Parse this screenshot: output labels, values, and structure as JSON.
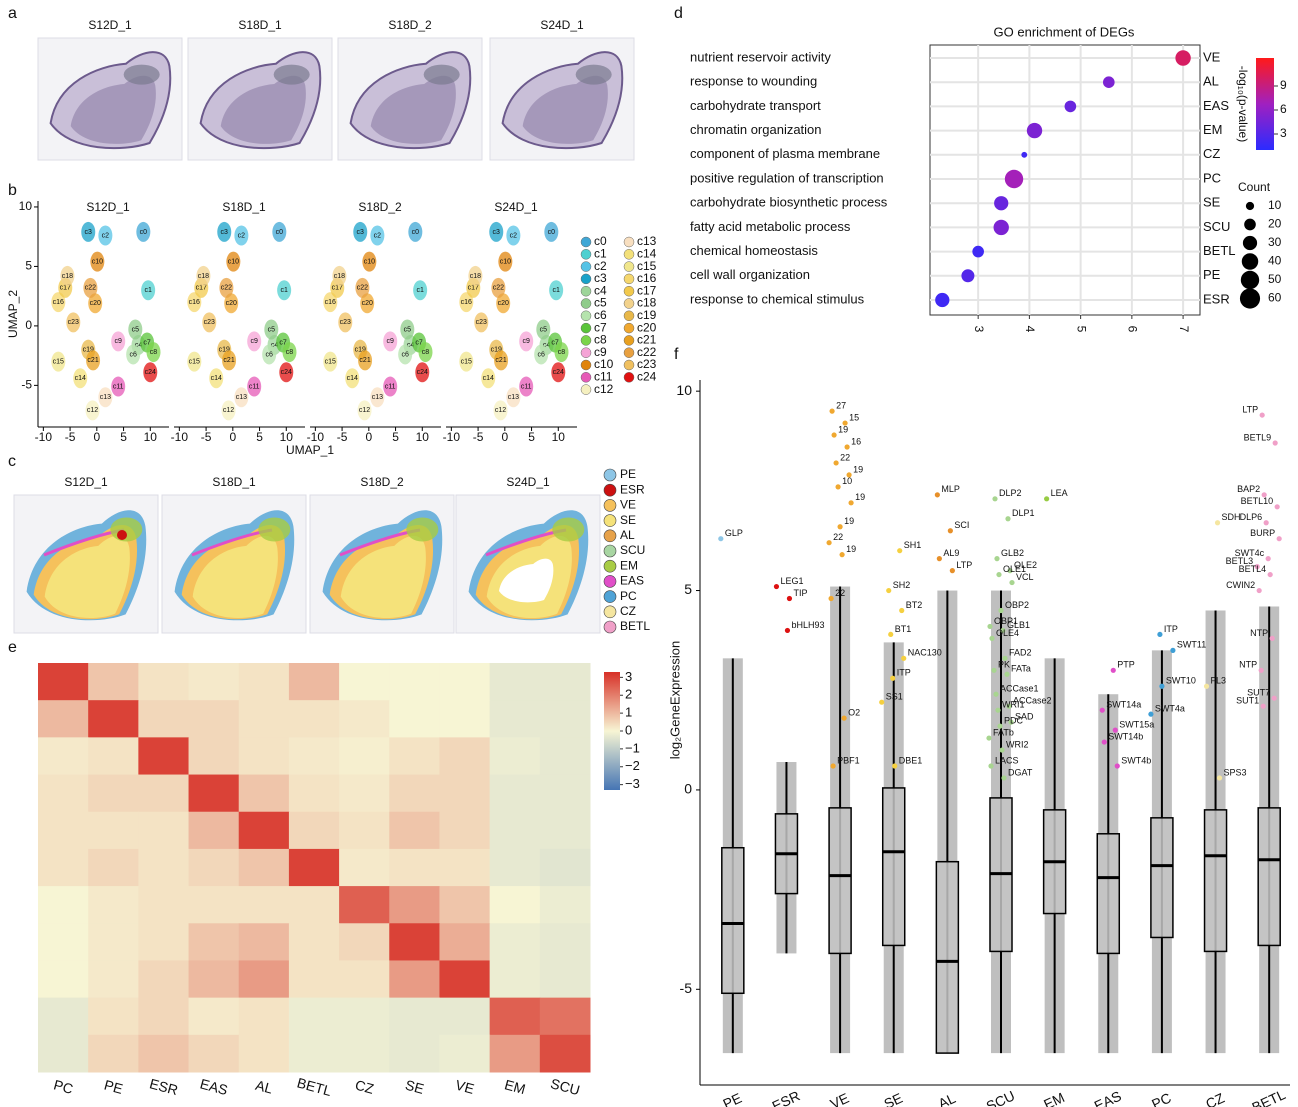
{
  "panel_labels": [
    "a",
    "b",
    "c",
    "d",
    "e",
    "f"
  ],
  "chart_data": [
    {
      "type": "image",
      "titles": [
        "S12D_1",
        "S18D_1",
        "S18D_2",
        "S24D_1"
      ]
    },
    {
      "type": "umap",
      "titles": [
        "S12D_1",
        "S18D_1",
        "S18D_2",
        "S24D_1"
      ],
      "x_label": "UMAP_1",
      "y_label": "UMAP_2",
      "xlim": [
        -11,
        13.5
      ],
      "ylim": [
        -8.5,
        10.5
      ],
      "xticks": [
        -10,
        -5,
        0,
        5,
        10
      ],
      "yticks": [
        -5,
        0,
        5,
        10
      ],
      "series": [
        {
          "name": "c0",
          "color": "#3fa7d6",
          "x": 8.7,
          "y": 7.9
        },
        {
          "name": "c1",
          "color": "#4fd0d0",
          "x": 9.6,
          "y": 3.0
        },
        {
          "name": "c2",
          "color": "#56c3e6",
          "x": 1.6,
          "y": 7.6
        },
        {
          "name": "c3",
          "color": "#1aa2c9",
          "x": -1.6,
          "y": 7.9
        },
        {
          "name": "c4",
          "color": "#9ed59a",
          "x": 7.8,
          "y": -1.6
        },
        {
          "name": "c5",
          "color": "#8fcc8a",
          "x": 7.2,
          "y": -0.3
        },
        {
          "name": "c6",
          "color": "#b5e3ad",
          "x": 6.8,
          "y": -2.4
        },
        {
          "name": "c7",
          "color": "#5ac43a",
          "x": 9.4,
          "y": -1.4
        },
        {
          "name": "c8",
          "color": "#7bd44a",
          "x": 10.6,
          "y": -2.2
        },
        {
          "name": "c9",
          "color": "#f5a3d6",
          "x": 4,
          "y": -1.3
        },
        {
          "name": "c10",
          "color": "#e0840c",
          "x": 0.1,
          "y": 5.4
        },
        {
          "name": "c11",
          "color": "#e65ab7",
          "x": 4,
          "y": -5.1
        },
        {
          "name": "c12",
          "color": "#f5f0c0",
          "x": -0.8,
          "y": -7.1
        },
        {
          "name": "c13",
          "color": "#f8dfc0",
          "x": 1.6,
          "y": -6
        },
        {
          "name": "c14",
          "color": "#f3e07a",
          "x": -3.1,
          "y": -4.4
        },
        {
          "name": "c15",
          "color": "#f0e68c",
          "x": -7.2,
          "y": -3
        },
        {
          "name": "c16",
          "color": "#f5d76e",
          "x": -7.2,
          "y": 2
        },
        {
          "name": "c17",
          "color": "#f2c94c",
          "x": -5.9,
          "y": 3.2
        },
        {
          "name": "c18",
          "color": "#f2d28c",
          "x": -5.5,
          "y": 4.2
        },
        {
          "name": "c19",
          "color": "#e8b84a",
          "x": -1.6,
          "y": -2
        },
        {
          "name": "c20",
          "color": "#f0a830",
          "x": -0.3,
          "y": 1.9
        },
        {
          "name": "c21",
          "color": "#e8a020",
          "x": -0.7,
          "y": -2.9
        },
        {
          "name": "c22",
          "color": "#e8a040",
          "x": -1.2,
          "y": 3.2
        },
        {
          "name": "c23",
          "color": "#f0c060",
          "x": -4.4,
          "y": 0.3
        },
        {
          "name": "c24",
          "color": "#e01010",
          "x": 10,
          "y": -3.9
        }
      ]
    },
    {
      "type": "image",
      "titles": [
        "S12D_1",
        "S18D_1",
        "S18D_2",
        "S24D_1"
      ],
      "regions": [
        {
          "name": "PE",
          "color": "#8ec6e6"
        },
        {
          "name": "ESR",
          "color": "#cc1111"
        },
        {
          "name": "VE",
          "color": "#f5c15c"
        },
        {
          "name": "SE",
          "color": "#f5e27a"
        },
        {
          "name": "AL",
          "color": "#e7a24a"
        },
        {
          "name": "SCU",
          "color": "#a8d5a2"
        },
        {
          "name": "EM",
          "color": "#a8cc44"
        },
        {
          "name": "EAS",
          "color": "#e04fc8"
        },
        {
          "name": "PC",
          "color": "#4fa3d6"
        },
        {
          "name": "CZ",
          "color": "#f5e6a0"
        },
        {
          "name": "BETL",
          "color": "#f0a0c8"
        }
      ]
    },
    {
      "type": "dot",
      "title": "GO enrichment of DEGs",
      "categories": [
        "nutrient reservoir activity",
        "response to wounding",
        "carbohydrate transport",
        "chromatin organization",
        "component of plasma membrane",
        "positive regulation of transcription",
        "carbohydrate biosynthetic process",
        "fatty acid metabolic process",
        "chemical homeostasis",
        "cell wall organization",
        "response to chemical stimulus"
      ],
      "tissues": [
        "VE",
        "AL",
        "EAS",
        "EM",
        "CZ",
        "PC",
        "SE",
        "SCU",
        "BETL",
        "PE",
        "ESR"
      ],
      "values": [
        7.0,
        5.55,
        4.8,
        4.1,
        3.9,
        3.7,
        3.45,
        3.45,
        3.0,
        2.8,
        2.3
      ],
      "counts": [
        35,
        20,
        20,
        35,
        5,
        50,
        30,
        35,
        20,
        25,
        30
      ],
      "pvalues": [
        10,
        5,
        4,
        5,
        2,
        7,
        4,
        5,
        2,
        3,
        2
      ],
      "xlim": [
        2.06,
        7.33
      ],
      "xticks": [
        3,
        4,
        5,
        6,
        7
      ],
      "color_label": "-log₁₀(p-value)",
      "color_lim": [
        1,
        12.5
      ],
      "color_ticks": [
        3,
        6,
        9
      ],
      "colormap": [
        "#2b2bff",
        "#a020c0",
        "#ff1a1a"
      ],
      "size_label": "Count",
      "size_ticks": [
        10,
        20,
        30,
        40,
        50,
        60
      ],
      "grid": true
    },
    {
      "type": "heatmap",
      "categories": [
        "PC",
        "PE",
        "ESR",
        "EAS",
        "AL",
        "BETL",
        "CZ",
        "SE",
        "VE",
        "EM",
        "SCU"
      ],
      "values": [
        [
          3,
          0.8,
          0.3,
          0.2,
          0.3,
          1.0,
          0,
          0,
          0,
          -0.3,
          -0.3
        ],
        [
          1,
          3,
          0.5,
          0.5,
          0.3,
          0.3,
          0.2,
          0,
          0,
          -0.3,
          -0.3
        ],
        [
          0.2,
          0.3,
          3,
          0.5,
          0.3,
          0.2,
          0.1,
          0.3,
          0.5,
          -0.2,
          -0.3
        ],
        [
          0.3,
          0.5,
          0.5,
          3,
          0.8,
          0.3,
          0.2,
          0.5,
          0.5,
          -0.3,
          -0.3
        ],
        [
          0.3,
          0.3,
          0.3,
          1.0,
          3,
          0.5,
          0.3,
          0.8,
          0.5,
          -0.3,
          -0.3
        ],
        [
          0.3,
          0.5,
          0.3,
          0.5,
          0.8,
          3,
          0.2,
          0.3,
          0.3,
          -0.3,
          -0.4
        ],
        [
          0,
          0.2,
          0.3,
          0.3,
          0.3,
          0.3,
          2.5,
          1.5,
          0.8,
          0,
          -0.2
        ],
        [
          0,
          0.2,
          0.3,
          0.8,
          1.0,
          0.3,
          0.5,
          3,
          1.2,
          -0.2,
          -0.3
        ],
        [
          0,
          0.2,
          0.5,
          1.0,
          1.5,
          0.3,
          0.3,
          1.5,
          3,
          -0.2,
          -0.3
        ],
        [
          -0.3,
          0.3,
          0.5,
          0.2,
          0.3,
          -0.2,
          -0.2,
          -0.3,
          -0.3,
          2.5,
          2.2
        ],
        [
          -0.3,
          0.5,
          0.8,
          0.5,
          0.3,
          -0.2,
          -0.2,
          -0.3,
          -0.2,
          1.5,
          2.8
        ]
      ],
      "clim": [
        -3.3,
        3.3
      ],
      "colormap": [
        "#4575b4",
        "#f7f5d4",
        "#d73027"
      ],
      "cticks": [
        3,
        2,
        1,
        0,
        {
          "value": -1,
          "label": "−1"
        },
        {
          "value": -2,
          "label": "−2"
        },
        {
          "value": -3,
          "label": "−3"
        }
      ]
    },
    {
      "type": "box",
      "y_label": "log₂GeneExpression",
      "ylim": [
        -7.4,
        10.28
      ],
      "yticks": [
        -5,
        0,
        5,
        10
      ],
      "categories": [
        "PE",
        "ESR",
        "VE",
        "SE",
        "AL",
        "SCU",
        "EM",
        "EAS",
        "PC",
        "CZ",
        "BETL"
      ],
      "colors": [
        "#8ec6e6",
        "#dd1111",
        "#f0a830",
        "#f5d040",
        "#e7902a",
        "#a8d590",
        "#98cc44",
        "#e04fc8",
        "#3f9fd6",
        "#f5e6a0",
        "#f0a0c8"
      ],
      "boxes": [
        [
          -6.6,
          -5.1,
          -3.35,
          -1.45,
          3.3
        ],
        [
          -4.1,
          -2.6,
          -1.6,
          -0.6,
          0.7
        ],
        [
          -6.6,
          -4.1,
          -2.15,
          -0.45,
          5.1
        ],
        [
          -6.6,
          -3.9,
          -1.55,
          0.05,
          3.7
        ],
        [
          -6.6,
          -6.6,
          -4.3,
          -1.8,
          5.0
        ],
        [
          -6.6,
          -4.05,
          -2.1,
          -0.2,
          5.0
        ],
        [
          -6.6,
          -3.1,
          -1.8,
          -0.5,
          3.3
        ],
        [
          -6.6,
          -4.1,
          -2.2,
          -1.1,
          2.4
        ],
        [
          -6.6,
          -3.7,
          -1.9,
          -0.7,
          3.5
        ],
        [
          -6.6,
          -4.05,
          -1.65,
          -0.5,
          4.5
        ],
        [
          -6.6,
          -3.9,
          -1.75,
          -0.45,
          4.6
        ]
      ],
      "points": [
        {
          "label": "GLP",
          "category": 0,
          "value": 6.3
        },
        {
          "label": "bHLH93",
          "category": 1,
          "value": 4.0
        },
        {
          "label": "LEG1",
          "category": 1,
          "value": 5.1
        },
        {
          "label": "TIP",
          "category": 1,
          "value": 4.8
        },
        {
          "label": "27",
          "category": 2,
          "value": 9.5
        },
        {
          "label": "15",
          "category": 2,
          "value": 9.2
        },
        {
          "label": "19",
          "category": 2,
          "value": 8.9
        },
        {
          "label": "16",
          "category": 2,
          "value": 8.6
        },
        {
          "label": "22",
          "category": 2,
          "value": 8.2
        },
        {
          "label": "19",
          "category": 2,
          "value": 7.9
        },
        {
          "label": "10",
          "category": 2,
          "value": 7.6
        },
        {
          "label": "19",
          "category": 2,
          "value": 7.2
        },
        {
          "label": "19",
          "category": 2,
          "value": 6.6
        },
        {
          "label": "22",
          "category": 2,
          "value": 6.2
        },
        {
          "label": "19",
          "category": 2,
          "value": 5.9
        },
        {
          "label": "22",
          "category": 2,
          "value": 4.8
        },
        {
          "label": "O2",
          "category": 2,
          "value": 1.8
        },
        {
          "label": "PBF1",
          "category": 2,
          "value": 0.6
        },
        {
          "label": "SH1",
          "category": 3,
          "value": 6.0
        },
        {
          "label": "SH2",
          "category": 3,
          "value": 5.0
        },
        {
          "label": "BT2",
          "category": 3,
          "value": 4.5
        },
        {
          "label": "BT1",
          "category": 3,
          "value": 3.9
        },
        {
          "label": "NAC130",
          "category": 3,
          "value": 3.3
        },
        {
          "label": "ITP",
          "category": 3,
          "value": 2.8
        },
        {
          "label": "SS1",
          "category": 3,
          "value": 2.2
        },
        {
          "label": "DBE1",
          "category": 3,
          "value": 0.6
        },
        {
          "label": "MLP",
          "category": 4,
          "value": 7.4
        },
        {
          "label": "SCI",
          "category": 4,
          "value": 6.5
        },
        {
          "label": "AL9",
          "category": 4,
          "value": 5.8
        },
        {
          "label": "LTP",
          "category": 4,
          "value": 5.5
        },
        {
          "label": "DLP2",
          "category": 5,
          "value": 7.3
        },
        {
          "label": "DLP1",
          "category": 5,
          "value": 6.8
        },
        {
          "label": "GLB2",
          "category": 5,
          "value": 5.8
        },
        {
          "label": "OLE2",
          "category": 5,
          "value": 5.5
        },
        {
          "label": "OLE1",
          "category": 5,
          "value": 5.4
        },
        {
          "label": "VCL",
          "category": 5,
          "value": 5.2
        },
        {
          "label": "OBP2",
          "category": 5,
          "value": 4.5
        },
        {
          "label": "OBP1",
          "category": 5,
          "value": 4.1
        },
        {
          "label": "GLB1",
          "category": 5,
          "value": 4.0
        },
        {
          "label": "OLE4",
          "category": 5,
          "value": 3.8
        },
        {
          "label": "FAD2",
          "category": 5,
          "value": 3.3
        },
        {
          "label": "PK",
          "category": 5,
          "value": 3.0
        },
        {
          "label": "FATa",
          "category": 5,
          "value": 2.9
        },
        {
          "label": "ACCase1",
          "category": 5,
          "value": 2.4
        },
        {
          "label": "ACCase2",
          "category": 5,
          "value": 2.1
        },
        {
          "label": "WRI1",
          "category": 5,
          "value": 2.0
        },
        {
          "label": "SAD",
          "category": 5,
          "value": 1.7
        },
        {
          "label": "PDC",
          "category": 5,
          "value": 1.6
        },
        {
          "label": "FATb",
          "category": 5,
          "value": 1.3
        },
        {
          "label": "WRI2",
          "category": 5,
          "value": 1.0
        },
        {
          "label": "LACS",
          "category": 5,
          "value": 0.6
        },
        {
          "label": "DGAT",
          "category": 5,
          "value": 0.3
        },
        {
          "label": "LEA",
          "category": 6,
          "value": 7.3
        },
        {
          "label": "PTP",
          "category": 7,
          "value": 3.0
        },
        {
          "label": "SWT14a",
          "category": 7,
          "value": 2.0
        },
        {
          "label": "SWT15a",
          "category": 7,
          "value": 1.5
        },
        {
          "label": "SWT14b",
          "category": 7,
          "value": 1.2
        },
        {
          "label": "SWT4b",
          "category": 7,
          "value": 0.6
        },
        {
          "label": "ITP",
          "category": 8,
          "value": 3.9
        },
        {
          "label": "SWT11",
          "category": 8,
          "value": 3.5
        },
        {
          "label": "SWT10",
          "category": 8,
          "value": 2.6
        },
        {
          "label": "SWT4a",
          "category": 8,
          "value": 1.9
        },
        {
          "label": "SDH",
          "category": 9,
          "value": 6.7
        },
        {
          "label": "FL3",
          "category": 9,
          "value": 2.6
        },
        {
          "label": "SPS3",
          "category": 9,
          "value": 0.3
        },
        {
          "label": "LTP",
          "category": 10,
          "value": 9.4
        },
        {
          "label": "BETL9",
          "category": 10,
          "value": 8.7
        },
        {
          "label": "BAP2",
          "category": 10,
          "value": 7.4
        },
        {
          "label": "BETL10",
          "category": 10,
          "value": 7.1
        },
        {
          "label": "DLP6",
          "category": 10,
          "value": 6.7
        },
        {
          "label": "BURP",
          "category": 10,
          "value": 6.3
        },
        {
          "label": "SWT4c",
          "category": 10,
          "value": 5.8
        },
        {
          "label": "BETL3",
          "category": 10,
          "value": 5.6
        },
        {
          "label": "BETL4",
          "category": 10,
          "value": 5.4
        },
        {
          "label": "CWIN2",
          "category": 10,
          "value": 5.0
        },
        {
          "label": "NTP",
          "category": 10,
          "value": 3.8
        },
        {
          "label": "NTP",
          "category": 10,
          "value": 3.0
        },
        {
          "label": "SUT7",
          "category": 10,
          "value": 2.3
        },
        {
          "label": "SUT1",
          "category": 10,
          "value": 2.1
        }
      ]
    }
  ]
}
